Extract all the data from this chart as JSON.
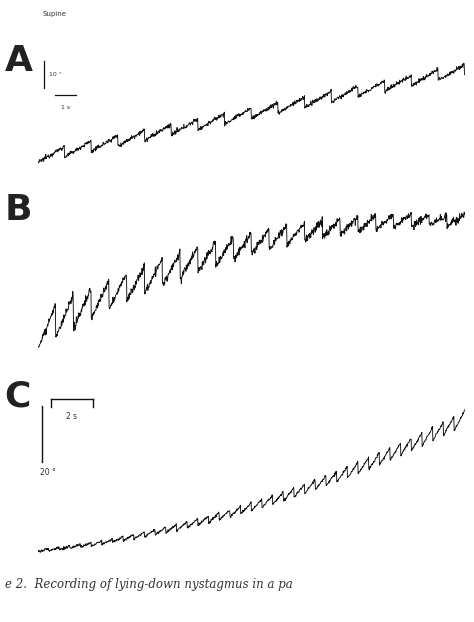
{
  "panel_labels": [
    "A",
    "B",
    "C"
  ],
  "panel_label_fontsize": 26,
  "background_color": "#ffffff",
  "line_color": "#111111",
  "line_width": 0.65,
  "fig_width": 4.74,
  "fig_height": 6.22,
  "caption": "e 2.  Recording of lying-down nystagmus in a pa",
  "caption_fontsize": 8.5,
  "scale_A_label": "Supine",
  "scale_A_deg": "10 °",
  "scale_A_sec": "1 s",
  "scale_C_deg": "20 °",
  "scale_C_sec": "2 s"
}
